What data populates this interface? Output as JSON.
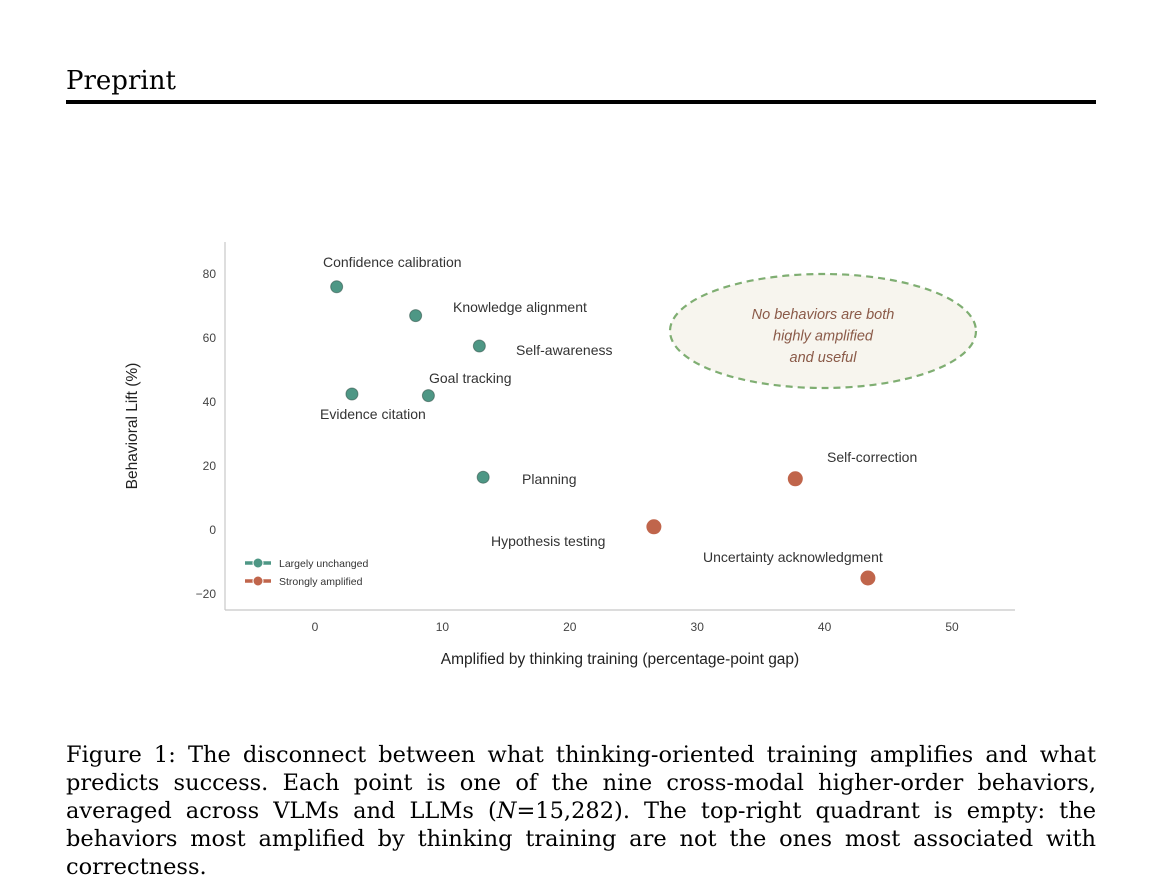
{
  "header": {
    "running_title": "Preprint"
  },
  "chart_data": {
    "type": "scatter",
    "xlabel": "Amplified by thinking training (percentage-point gap)",
    "ylabel": "Behavioral Lift (%)",
    "xlim": [
      -7,
      55
    ],
    "ylim": [
      -25,
      90
    ],
    "xticks": [
      0,
      10,
      20,
      30,
      40,
      50
    ],
    "yticks": [
      -20,
      0,
      20,
      40,
      60,
      80
    ],
    "grid": false,
    "legend_position": "bottom-left",
    "series": [
      {
        "name": "Largely unchanged",
        "color": "#4e9785",
        "points": [
          {
            "label": "Confidence calibration",
            "x": 1.7,
            "y": 76
          },
          {
            "label": "Knowledge alignment",
            "x": 7.9,
            "y": 67
          },
          {
            "label": "Self-awareness",
            "x": 12.9,
            "y": 57.5
          },
          {
            "label": "Evidence citation",
            "x": 2.9,
            "y": 42.5
          },
          {
            "label": "Goal tracking",
            "x": 8.9,
            "y": 42
          },
          {
            "label": "Planning",
            "x": 13.2,
            "y": 16.5
          }
        ]
      },
      {
        "name": "Strongly amplified",
        "color": "#c0654b",
        "points": [
          {
            "label": "Hypothesis testing",
            "x": 26.6,
            "y": 1
          },
          {
            "label": "Self-correction",
            "x": 37.7,
            "y": 16
          },
          {
            "label": "Uncertainty acknowledgment",
            "x": 43.4,
            "y": -15
          }
        ]
      }
    ],
    "annotation": {
      "lines": [
        "No behaviors are both",
        "highly amplified",
        "and useful"
      ],
      "center_x": 39.5,
      "center_y": 62,
      "border_color": "#7fae72",
      "fill_color": "#f7f5ee",
      "text_color": "#8a5a48"
    }
  },
  "caption": {
    "prefix": "Figure 1:",
    "text_before_n": "The disconnect between what thinking-oriented training amplifies and what predicts success. Each point is one of the nine cross-modal higher-order behaviors, averaged across VLMs and LLMs (",
    "n_symbol": "N",
    "n_value": "=15,282",
    "text_after_n": "). The top-right quadrant is empty: the behaviors most amplified by thinking training are not the ones most associated with correctness."
  }
}
